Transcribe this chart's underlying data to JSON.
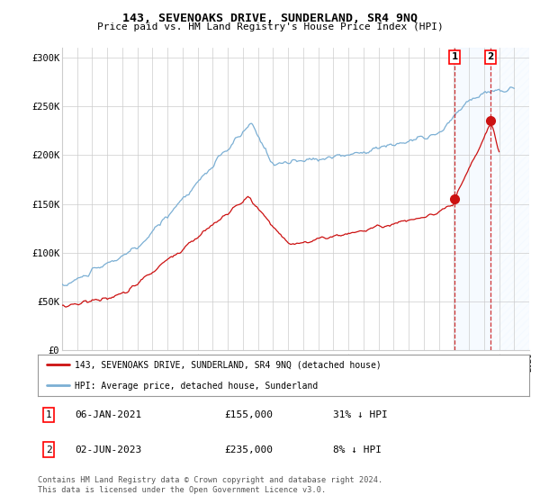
{
  "title": "143, SEVENOAKS DRIVE, SUNDERLAND, SR4 9NQ",
  "subtitle": "Price paid vs. HM Land Registry's House Price Index (HPI)",
  "ylim": [
    0,
    310000
  ],
  "yticks": [
    0,
    50000,
    100000,
    150000,
    200000,
    250000,
    300000
  ],
  "ytick_labels": [
    "£0",
    "£50K",
    "£100K",
    "£150K",
    "£200K",
    "£250K",
    "£300K"
  ],
  "hpi_color": "#7bafd4",
  "price_color": "#cc1111",
  "marker1_x": 2021.04,
  "marker1_y": 155000,
  "marker1_label": "06-JAN-2021",
  "marker2_x": 2023.42,
  "marker2_y": 235000,
  "marker2_label": "02-JUN-2023",
  "legend_line1": "143, SEVENOAKS DRIVE, SUNDERLAND, SR4 9NQ (detached house)",
  "legend_line2": "HPI: Average price, detached house, Sunderland",
  "footer": "Contains HM Land Registry data © Crown copyright and database right 2024.\nThis data is licensed under the Open Government Licence v3.0.",
  "background_color": "#ffffff",
  "shade_color": "#ddeeff",
  "grid_color": "#cccccc",
  "xmin": 1995,
  "xmax": 2026,
  "hpi_seed": 10,
  "price_seed": 20
}
